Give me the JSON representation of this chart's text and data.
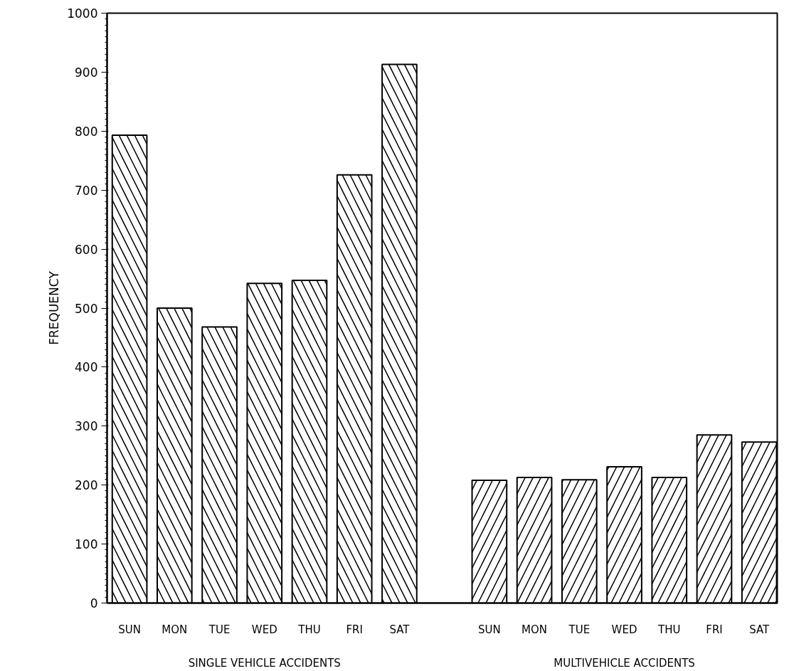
{
  "chart_data": {
    "type": "bar",
    "categories": [
      "SUN",
      "MON",
      "TUE",
      "WED",
      "THU",
      "FRI",
      "SAT",
      null,
      "SUN",
      "MON",
      "TUE",
      "WED",
      "THU",
      "FRI",
      "SAT"
    ],
    "series": [
      {
        "color": "#000000",
        "values": [
          793,
          500,
          468,
          542,
          547,
          726,
          913,
          null,
          null,
          null,
          null,
          null,
          null,
          null,
          null
        ]
      },
      {
        "color": "#000000",
        "values": [
          null,
          null,
          null,
          null,
          null,
          null,
          null,
          null,
          208,
          213,
          209,
          231,
          213,
          285,
          273
        ]
      }
    ],
    "ylabel": "FREQUENCY",
    "annotations": [
      "SINGLE VEHICLE ACCIDENTS",
      "MULTIVEHICLE ACCIDENTS"
    ],
    "ylim": [
      0,
      1000
    ],
    "yticks": [
      0,
      100,
      200,
      300,
      400,
      500,
      600,
      700,
      800,
      900,
      1000
    ],
    "grid": false
  }
}
